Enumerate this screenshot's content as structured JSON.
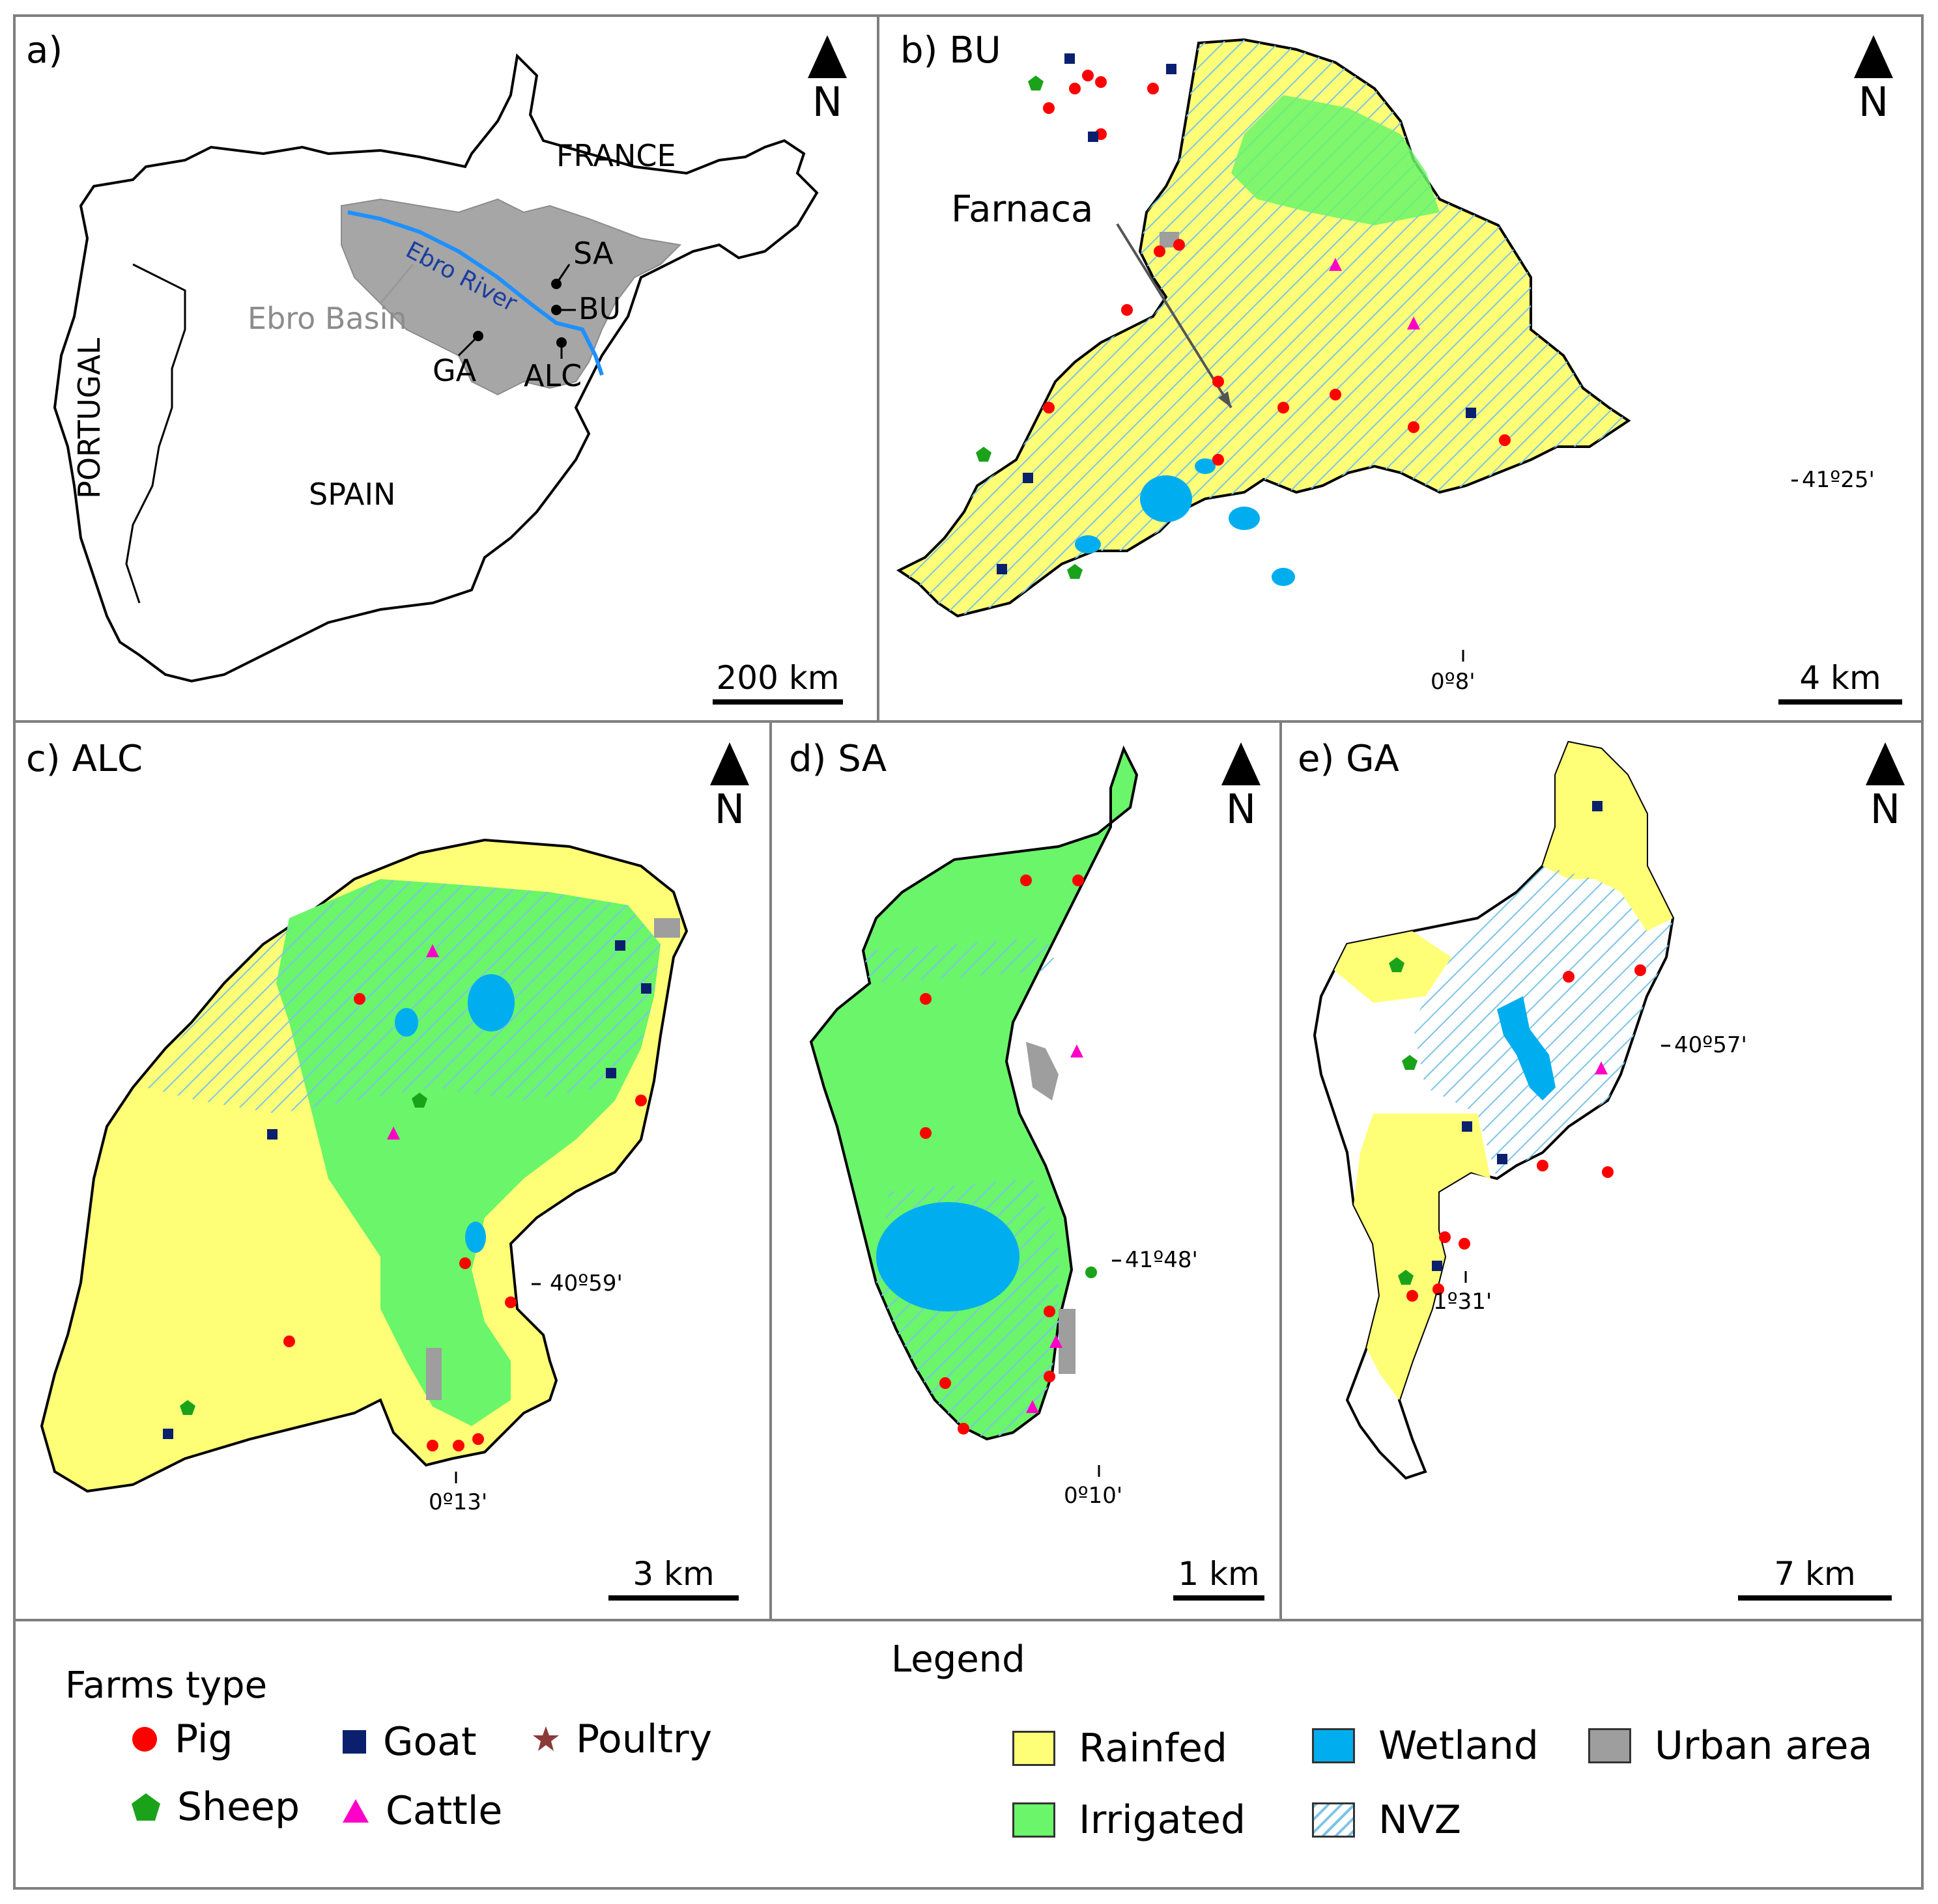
{
  "colors": {
    "rainfed": "#ffff77",
    "irrigated": "#6af56a",
    "wetland": "#00aeef",
    "urban": "#9e9e9e",
    "nvz_hatch": "#7cc4e6",
    "basin": "#a6a6a6",
    "river": "#1e90ff",
    "pig": "#ff0000",
    "sheep": "#1aa31a",
    "goat": "#0a1f6e",
    "cattle": "#ff00c8",
    "poultry": "#8b3a3a"
  },
  "panels": {
    "a": {
      "label": "a)",
      "countries": [
        "FRANCE",
        "PORTUGAL",
        "SPAIN"
      ],
      "basin_label": "Ebro Basin",
      "river_label": "Ebro River",
      "sites": [
        "SA",
        "BU",
        "GA",
        "ALC"
      ],
      "scale": "200 km",
      "north": "N"
    },
    "b": {
      "label": "b) BU",
      "callout": "Farnaca",
      "lat_tick": "41º25'",
      "lon_tick": "0º8'",
      "scale": "4 km",
      "north": "N"
    },
    "c": {
      "label": "c) ALC",
      "lat_tick": "40º59'",
      "lon_tick": "0º13'",
      "scale": "3 km",
      "north": "N"
    },
    "d": {
      "label": "d) SA",
      "lat_tick": "41º48'",
      "lon_tick": "0º10'",
      "scale": "1 km",
      "north": "N"
    },
    "e": {
      "label": "e) GA",
      "lat_tick": "40º57'",
      "lon_tick": "1º31'",
      "scale": "7 km",
      "north": "N"
    }
  },
  "legend": {
    "title": "Legend",
    "farms_title": "Farms type",
    "farms": [
      {
        "label": "Pig",
        "icon": "circle-icon"
      },
      {
        "label": "Goat",
        "icon": "square-icon"
      },
      {
        "label": "Poultry",
        "icon": "star-icon"
      },
      {
        "label": "Sheep",
        "icon": "pentagon-icon"
      },
      {
        "label": "Cattle",
        "icon": "triangle-icon"
      }
    ],
    "landuse": [
      {
        "label": "Rainfed"
      },
      {
        "label": "Wetland"
      },
      {
        "label": "Urban area"
      },
      {
        "label": "Irrigated"
      },
      {
        "label": "NVZ"
      }
    ]
  }
}
